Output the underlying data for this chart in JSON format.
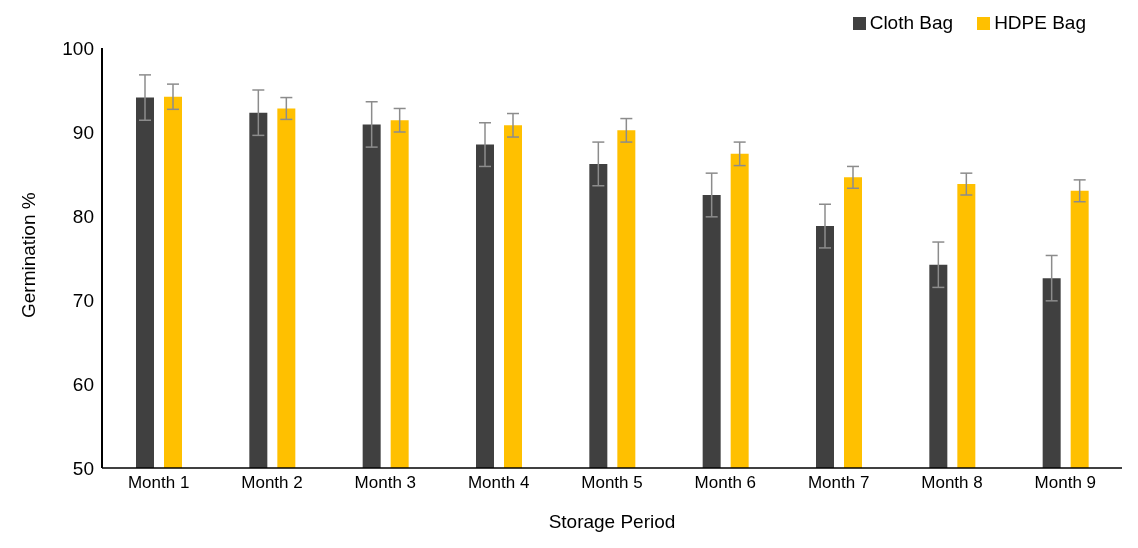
{
  "chart_data": {
    "type": "bar",
    "xlabel": "Storage Period",
    "ylabel": "Germination %",
    "categories": [
      "Month 1",
      "Month 2",
      "Month 3",
      "Month 4",
      "Month 5",
      "Month 6",
      "Month 7",
      "Month 8",
      "Month 9"
    ],
    "series": [
      {
        "name": "Cloth Bag",
        "color": "#404040",
        "values": [
          94.1,
          92.3,
          90.9,
          88.5,
          86.2,
          82.5,
          78.8,
          74.2,
          72.6
        ],
        "errors": [
          2.7,
          2.7,
          2.7,
          2.6,
          2.6,
          2.6,
          2.6,
          2.7,
          2.7
        ]
      },
      {
        "name": "HDPE Bag",
        "color": "#ffc000",
        "values": [
          94.2,
          92.8,
          91.4,
          90.8,
          90.2,
          87.4,
          84.6,
          83.8,
          83.0
        ],
        "errors": [
          1.5,
          1.3,
          1.4,
          1.4,
          1.4,
          1.4,
          1.3,
          1.3,
          1.3
        ]
      }
    ],
    "ylim": [
      50,
      100
    ],
    "yticks": [
      50,
      60,
      70,
      80,
      90,
      100
    ],
    "grid": false,
    "legend": "top right"
  }
}
